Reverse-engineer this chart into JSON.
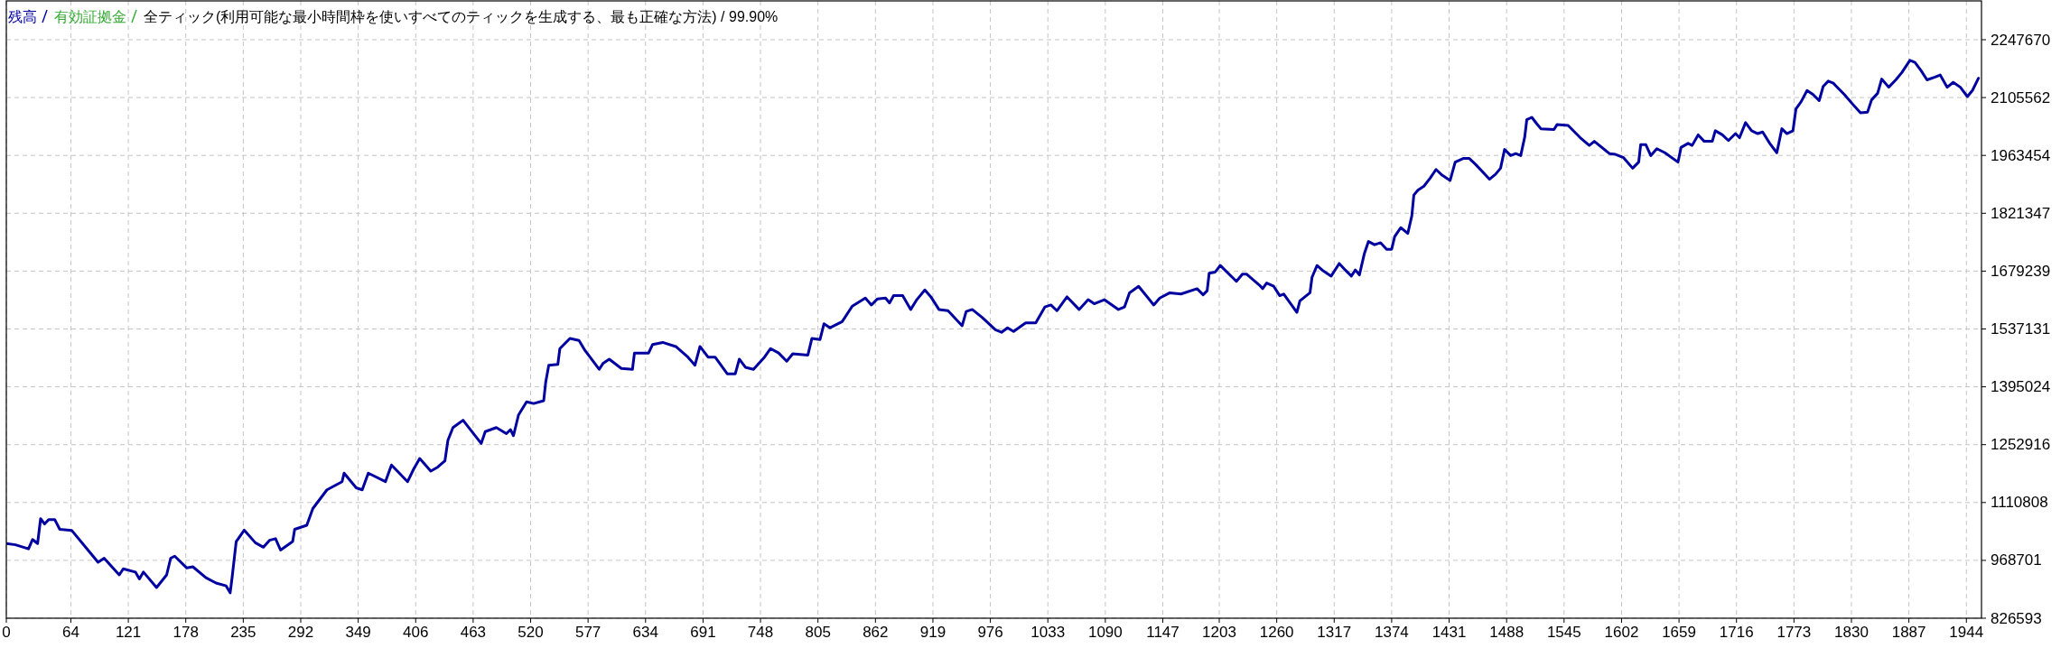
{
  "chart_data": {
    "type": "line",
    "title": "全ティック(利用可能な最小時間枠を使いすべてのティックを生成する、最も正確な方法) / 99.90%",
    "legend": "top left",
    "grid": true,
    "xlim": [
      0,
      1959
    ],
    "ylim": [
      826593,
      2343000
    ],
    "xticks": [
      0,
      64,
      121,
      178,
      235,
      292,
      349,
      406,
      463,
      520,
      577,
      634,
      691,
      748,
      805,
      862,
      919,
      976,
      1033,
      1090,
      1147,
      1203,
      1260,
      1317,
      1374,
      1431,
      1488,
      1545,
      1602,
      1659,
      1716,
      1773,
      1830,
      1887,
      1944
    ],
    "yticks": [
      826593,
      968701,
      1110808,
      1252916,
      1395024,
      1537131,
      1679239,
      1821347,
      1963454,
      2105562,
      2247670
    ],
    "series": [
      {
        "name": "残高",
        "color": "#0000a0",
        "x": [
          0,
          9,
          22,
          26,
          31,
          34,
          38,
          42,
          48,
          53,
          65,
          81,
          91,
          97,
          112,
          116,
          128,
          132,
          136,
          149,
          159,
          163,
          167,
          179,
          185,
          198,
          208,
          218,
          222,
          224,
          228,
          236,
          247,
          255,
          261,
          267,
          272,
          284,
          286,
          298,
          304,
          318,
          333,
          335,
          347,
          353,
          359,
          376,
          382,
          398,
          404,
          410,
          421,
          428,
          435,
          438,
          443,
          453,
          471,
          475,
          486,
          496,
          500,
          503,
          508,
          516,
          523,
          533,
          535,
          538,
          547,
          549,
          559,
          568,
          574,
          588,
          592,
          598,
          610,
          621,
          623,
          637,
          641,
          651,
          664,
          676,
          683,
          688,
          696,
          703,
          715,
          723,
          727,
          733,
          741,
          752,
          758,
          766,
          774,
          780,
          795,
          799,
          807,
          811,
          817,
          829,
          839,
          852,
          858,
          864,
          872,
          876,
          880,
          889,
          897,
          903,
          911,
          917,
          925,
          934,
          948,
          952,
          958,
          968,
          981,
          987,
          993,
          999,
          1011,
          1021,
          1030,
          1036,
          1042,
          1052,
          1064,
          1073,
          1079,
          1089,
          1103,
          1109,
          1114,
          1123,
          1138,
          1144,
          1154,
          1165,
          1181,
          1187,
          1191,
          1193,
          1199,
          1204,
          1220,
          1226,
          1230,
          1244,
          1246,
          1250,
          1257,
          1263,
          1267,
          1280,
          1283,
          1293,
          1295,
          1300,
          1306,
          1314,
          1322,
          1328,
          1334,
          1338,
          1342,
          1347,
          1351,
          1357,
          1363,
          1369,
          1374,
          1377,
          1383,
          1390,
          1394,
          1396,
          1400,
          1406,
          1412,
          1418,
          1424,
          1432,
          1437,
          1445,
          1451,
          1457,
          1471,
          1477,
          1482,
          1486,
          1492,
          1497,
          1502,
          1506,
          1508,
          1513,
          1518,
          1522,
          1535,
          1538,
          1549,
          1561,
          1570,
          1575,
          1590,
          1596,
          1604,
          1613,
          1619,
          1621,
          1626,
          1631,
          1637,
          1645,
          1658,
          1661,
          1668,
          1672,
          1678,
          1684,
          1692,
          1695,
          1702,
          1708,
          1715,
          1719,
          1725,
          1731,
          1737,
          1742,
          1749,
          1756,
          1761,
          1766,
          1772,
          1775,
          1780,
          1786,
          1792,
          1798,
          1802,
          1807,
          1812,
          1823,
          1831,
          1839,
          1846,
          1850,
          1856,
          1860,
          1867,
          1874,
          1880,
          1888,
          1893,
          1899,
          1905,
          1913,
          1918,
          1925,
          1931,
          1938,
          1945,
          1950,
          1956
        ],
        "values": [
          1010000,
          1007000,
          997000,
          1020000,
          1010000,
          1071000,
          1058000,
          1069000,
          1069000,
          1045000,
          1042000,
          994000,
          964000,
          974000,
          933000,
          948000,
          940000,
          923000,
          940000,
          902000,
          933000,
          974000,
          979000,
          950000,
          953000,
          926000,
          913000,
          906000,
          889000,
          928000,
          1015000,
          1043000,
          1012000,
          1001000,
          1018000,
          1022000,
          994000,
          1015000,
          1045000,
          1055000,
          1096000,
          1142000,
          1162000,
          1183000,
          1147000,
          1142000,
          1183000,
          1162000,
          1203000,
          1162000,
          1193000,
          1219000,
          1188000,
          1198000,
          1213000,
          1264000,
          1295000,
          1313000,
          1256000,
          1285000,
          1295000,
          1280000,
          1290000,
          1275000,
          1326000,
          1358000,
          1354000,
          1361000,
          1407000,
          1448000,
          1450000,
          1489000,
          1514000,
          1509000,
          1484000,
          1438000,
          1453000,
          1463000,
          1440000,
          1438000,
          1478000,
          1478000,
          1499000,
          1504000,
          1494000,
          1468000,
          1448000,
          1494000,
          1468000,
          1468000,
          1427000,
          1427000,
          1463000,
          1443000,
          1438000,
          1468000,
          1489000,
          1478000,
          1458000,
          1476000,
          1473000,
          1514000,
          1511000,
          1550000,
          1540000,
          1555000,
          1593000,
          1613000,
          1596000,
          1611000,
          1613000,
          1601000,
          1619000,
          1619000,
          1585000,
          1609000,
          1633000,
          1616000,
          1585000,
          1582000,
          1545000,
          1580000,
          1585000,
          1565000,
          1535000,
          1529000,
          1540000,
          1531000,
          1552000,
          1552000,
          1591000,
          1596000,
          1582000,
          1616000,
          1585000,
          1609000,
          1599000,
          1609000,
          1585000,
          1591000,
          1626000,
          1642000,
          1596000,
          1613000,
          1626000,
          1623000,
          1636000,
          1621000,
          1631000,
          1674000,
          1677000,
          1693000,
          1654000,
          1672000,
          1672000,
          1642000,
          1636000,
          1650000,
          1642000,
          1619000,
          1623000,
          1578000,
          1606000,
          1626000,
          1664000,
          1693000,
          1680000,
          1667000,
          1698000,
          1682000,
          1667000,
          1682000,
          1670000,
          1723000,
          1752000,
          1744000,
          1749000,
          1733000,
          1733000,
          1764000,
          1786000,
          1772000,
          1815000,
          1866000,
          1878000,
          1888000,
          1907000,
          1929000,
          1915000,
          1902000,
          1947000,
          1956000,
          1956000,
          1942000,
          1905000,
          1917000,
          1932000,
          1978000,
          1963000,
          1968000,
          1963000,
          2009000,
          2051000,
          2057000,
          2041000,
          2029000,
          2027000,
          2039000,
          2037000,
          2007000,
          1988000,
          1998000,
          1968000,
          1966000,
          1958000,
          1932000,
          1947000,
          1990000,
          1990000,
          1963000,
          1980000,
          1970000,
          1947000,
          1983000,
          1993000,
          1988000,
          2014000,
          1998000,
          1998000,
          2024000,
          2014000,
          2000000,
          2017000,
          2007000,
          2044000,
          2024000,
          2017000,
          2021000,
          1993000,
          1970000,
          2029000,
          2017000,
          2024000,
          2078000,
          2095000,
          2123000,
          2113000,
          2098000,
          2133000,
          2146000,
          2141000,
          2113000,
          2090000,
          2068000,
          2070000,
          2100000,
          2116000,
          2151000,
          2131000,
          2149000,
          2167000,
          2197000,
          2192000,
          2172000,
          2149000,
          2156000,
          2161000,
          2131000,
          2143000,
          2131000,
          2108000,
          2123000,
          2153000
        ]
      },
      {
        "name": "有効証拠金",
        "color": "#32aa32"
      }
    ]
  }
}
